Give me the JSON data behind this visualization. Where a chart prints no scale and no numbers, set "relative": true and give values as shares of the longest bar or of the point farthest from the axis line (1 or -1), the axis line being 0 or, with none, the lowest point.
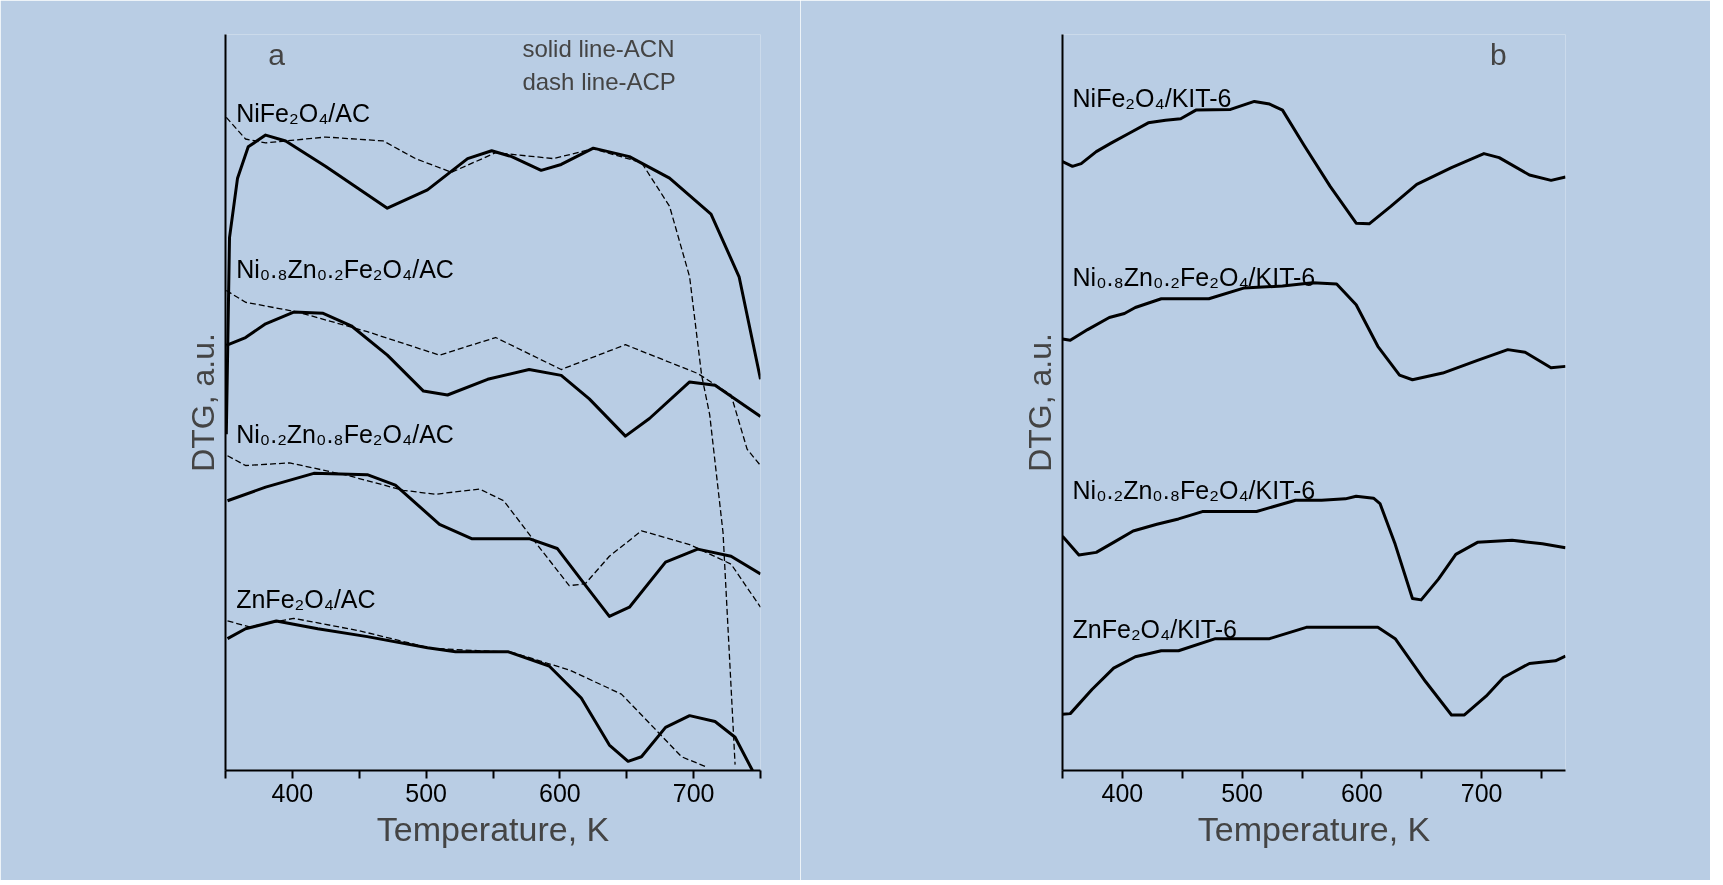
{
  "chart_data": [
    {
      "type": "line",
      "relative": true,
      "xlabel": "Temperature, K",
      "ylabel": "DTG, a.u.",
      "xlim": [
        350,
        750
      ],
      "xticks": [
        {
          "value": 350,
          "label": null
        },
        400,
        {
          "value": 450,
          "label": null
        },
        500,
        {
          "value": 550,
          "label": null
        },
        600,
        {
          "value": 650,
          "label": null
        },
        700,
        {
          "value": 750,
          "label": null
        }
      ],
      "tick_labels": "x",
      "grid": false,
      "marker": "none",
      "annotations": [
        "a",
        "solid line-ACN",
        "dash line-ACP"
      ],
      "series": [
        {
          "name": "NiFe₂O₄/AC",
          "color": "#000000",
          "line_style": "solid",
          "x": [
            350.6,
            353,
            359,
            367,
            380,
            395,
            425,
            471,
            501,
            531,
            549,
            564,
            586,
            601,
            625,
            652,
            682,
            713,
            734,
            750
          ],
          "values": [
            0.515,
            0.816,
            0.907,
            0.955,
            0.973,
            0.964,
            0.925,
            0.861,
            0.889,
            0.937,
            0.949,
            0.94,
            0.919,
            0.928,
            0.953,
            0.94,
            0.907,
            0.852,
            0.756,
            0.599
          ]
        },
        {
          "color": "#000000",
          "line_style": "dashed",
          "x": [
            350.6,
            365,
            380,
            425,
            468,
            492,
            519,
            552,
            595,
            625,
            661,
            682,
            697,
            706,
            712,
            722,
            731
          ],
          "values": [
            1.0,
            0.967,
            0.961,
            0.97,
            0.964,
            0.937,
            0.916,
            0.946,
            0.937,
            0.952,
            0.931,
            0.864,
            0.756,
            0.605,
            0.545,
            0.364,
            0.009
          ]
        },
        {
          "color": "#000000",
          "line_style": "solid",
          "x": [
            350.6,
            365,
            380,
            401,
            423,
            444,
            471,
            498,
            516,
            546,
            577,
            601,
            622,
            649,
            667,
            697,
            716,
            750
          ],
          "values": [
            0.651,
            0.663,
            0.684,
            0.702,
            0.7,
            0.681,
            0.636,
            0.581,
            0.575,
            0.599,
            0.614,
            0.605,
            0.569,
            0.512,
            0.539,
            0.595,
            0.59,
            0.542
          ]
        },
        {
          "name": "Ni₀.₈Zn₀.₂Fe₂O₄/AC",
          "color": "#000000",
          "line_style": "dashed",
          "x": [
            350.6,
            365,
            404,
            456,
            510,
            552,
            601,
            649,
            703,
            728,
            740,
            750
          ],
          "values": [
            0.735,
            0.717,
            0.702,
            0.672,
            0.636,
            0.663,
            0.614,
            0.652,
            0.608,
            0.575,
            0.492,
            0.467
          ]
        },
        {
          "color": "#000000",
          "line_style": "solid",
          "x": [
            351.5,
            380,
            416,
            456,
            477,
            510,
            534,
            577,
            598,
            616,
            637,
            652,
            679,
            703,
            728,
            750
          ],
          "values": [
            0.413,
            0.434,
            0.455,
            0.453,
            0.437,
            0.377,
            0.355,
            0.355,
            0.34,
            0.292,
            0.236,
            0.25,
            0.319,
            0.339,
            0.328,
            0.301
          ]
        },
        {
          "name": "Ni₀.₂Zn₀.₈Fe₂O₄/AC",
          "color": "#000000",
          "line_style": "dashed",
          "x": [
            351.5,
            365,
            398,
            441,
            483,
            507,
            540,
            558,
            583,
            607,
            619,
            637,
            661,
            697,
            728,
            750
          ],
          "values": [
            0.482,
            0.467,
            0.471,
            0.452,
            0.429,
            0.423,
            0.431,
            0.413,
            0.346,
            0.283,
            0.286,
            0.328,
            0.367,
            0.346,
            0.316,
            0.25
          ]
        },
        {
          "name": "ZnFe₂O₄/AC",
          "color": "#000000",
          "line_style": "solid",
          "x": [
            351.5,
            365,
            388,
            419,
            456,
            501,
            522,
            561,
            592,
            616,
            637,
            651,
            661,
            679,
            697,
            716,
            731,
            744
          ],
          "values": [
            0.202,
            0.217,
            0.229,
            0.217,
            0.205,
            0.188,
            0.182,
            0.182,
            0.16,
            0.111,
            0.039,
            0.014,
            0.021,
            0.066,
            0.084,
            0.075,
            0.051,
            0.0
          ]
        },
        {
          "color": "#000000",
          "line_style": "dashed",
          "x": [
            351.5,
            368,
            401,
            450,
            504,
            564,
            607,
            646,
            670,
            691,
            709
          ],
          "values": [
            0.229,
            0.22,
            0.233,
            0.214,
            0.187,
            0.181,
            0.154,
            0.117,
            0.066,
            0.021,
            0.006
          ]
        }
      ]
    },
    {
      "type": "line",
      "relative": true,
      "xlabel": "Temperature, K",
      "ylabel": "DTG, a.u.",
      "xlim": [
        350,
        770
      ],
      "xticks": [
        {
          "value": 350,
          "label": null
        },
        400,
        {
          "value": 450,
          "label": null
        },
        500,
        {
          "value": 550,
          "label": null
        },
        600,
        {
          "value": 650,
          "label": null
        },
        700,
        {
          "value": 750,
          "label": null
        }
      ],
      "tick_labels": "x",
      "grid": false,
      "marker": "none",
      "annotations": [
        "b"
      ],
      "series": [
        {
          "name": "NiFe₂O₄/KIT-6",
          "color": "#000000",
          "line_style": "solid",
          "x": [
            350,
            358.3,
            365.6,
            378.2,
            390.9,
            405.3,
            421.6,
            436.1,
            448.7,
            461.4,
            490.3,
            510.2,
            522.9,
            533.7,
            551.8,
            573.5,
            595.2,
            606.1,
            624.1,
            645.8,
            674.8,
            701.9,
            714.6,
            739.9,
            758.0,
            770
          ],
          "values": [
            0.91,
            0.903,
            0.907,
            0.925,
            0.938,
            0.952,
            0.968,
            0.972,
            0.974,
            0.987,
            0.988,
            1.0,
            0.996,
            0.987,
            0.934,
            0.873,
            0.818,
            0.817,
            0.843,
            0.876,
            0.901,
            0.922,
            0.916,
            0.89,
            0.882,
            0.887
          ]
        },
        {
          "name": "Ni₀.₈Zn₀.₂Fe₂O₄/KIT-6",
          "color": "#000000",
          "line_style": "solid",
          "x": [
            350,
            356.5,
            371.0,
            389.1,
            401.7,
            410.8,
            432.5,
            472.2,
            501.2,
            533.7,
            559.0,
            578.9,
            595.2,
            613.3,
            631.4,
            642.2,
            667.5,
            696.5,
            721.8,
            736.3,
            757.9,
            770
          ],
          "values": [
            0.645,
            0.643,
            0.659,
            0.677,
            0.683,
            0.692,
            0.705,
            0.705,
            0.721,
            0.724,
            0.729,
            0.727,
            0.696,
            0.634,
            0.591,
            0.584,
            0.594,
            0.613,
            0.629,
            0.625,
            0.602,
            0.604
          ]
        },
        {
          "name": "Ni₀.₂Zn₀.₈Fe₂O₄/KIT-6",
          "color": "#000000",
          "line_style": "solid",
          "x": [
            350,
            363.7,
            378.2,
            392.7,
            409.0,
            428.8,
            446.9,
            466.8,
            512.0,
            544.6,
            566.3,
            586.2,
            595.2,
            609.7,
            615.1,
            627.8,
            642.2,
            649.5,
            663.9,
            678.4,
            696.5,
            725.4,
            750.7,
            770
          ],
          "values": [
            0.35,
            0.322,
            0.326,
            0.341,
            0.358,
            0.368,
            0.376,
            0.387,
            0.387,
            0.404,
            0.404,
            0.406,
            0.41,
            0.407,
            0.399,
            0.338,
            0.257,
            0.255,
            0.286,
            0.323,
            0.341,
            0.344,
            0.339,
            0.333
          ]
        },
        {
          "name": "ZnFe₂O₄/KIT-6",
          "color": "#000000",
          "line_style": "solid",
          "x": [
            350,
            356.5,
            374.6,
            392.7,
            410.8,
            432.5,
            446.9,
            477.7,
            522.9,
            553.6,
            580.7,
            613.3,
            627.8,
            653.1,
            674.8,
            685.6,
            703.7,
            718.2,
            739.9,
            761.6,
            770
          ],
          "values": [
            0.084,
            0.085,
            0.121,
            0.153,
            0.17,
            0.179,
            0.179,
            0.197,
            0.197,
            0.214,
            0.214,
            0.214,
            0.197,
            0.133,
            0.083,
            0.083,
            0.111,
            0.139,
            0.16,
            0.164,
            0.171
          ]
        }
      ]
    }
  ]
}
